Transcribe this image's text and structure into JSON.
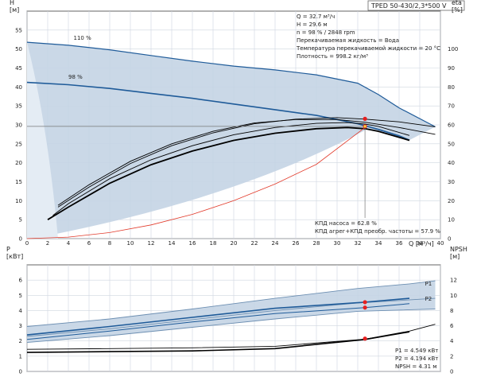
{
  "title": "TPED 50-430/2,3*500 V",
  "colors": {
    "range_fill": "#c4d4e4",
    "range_edge": "#6d8fb2",
    "grid": "#cfd6df",
    "head_blue": "#1f5b99",
    "eff_black": "#000000",
    "system_red": "#e23a2a",
    "marker_red": "#e62020",
    "marker_yellow": "#f2e13a"
  },
  "info_top": [
    "Q = 32.7 м³/ч",
    "H = 29.6 м",
    "n = 98 % / 2848 rpm",
    "Перекачиваемая жидкость = Вода",
    "Температура перекачиваемой жидкости = 20 °C",
    "Плотность = 998.2 кг/м³"
  ],
  "info_eff": [
    "КПД насоса = 62.8 %",
    "КПД агрег+КПД преобр. частоты = 57.9 %"
  ],
  "info_bottom": [
    "P1 = 4.549 кВт",
    "P2 = 4.194 кВт",
    "NPSH = 4.31 м"
  ],
  "chart_data": [
    {
      "type": "line",
      "panel": "head-efficiency",
      "xlabel": "Q [м³/ч]",
      "ylabel": "H [м]",
      "y2label": "eta [%]",
      "xlim": [
        0,
        40
      ],
      "ylim": [
        0,
        60
      ],
      "y2lim": [
        0,
        120
      ],
      "x_ticks": [
        0,
        2,
        4,
        6,
        8,
        10,
        12,
        14,
        16,
        18,
        20,
        22,
        24,
        26,
        28,
        30,
        32,
        34,
        36,
        38,
        40
      ],
      "y_ticks": [
        0,
        5,
        10,
        15,
        20,
        25,
        30,
        35,
        40,
        45,
        50,
        55
      ],
      "y2_ticks": [
        0,
        10,
        20,
        30,
        40,
        50,
        60,
        70,
        80,
        90,
        100
      ],
      "grid": true,
      "curve_labels": [
        "110 %",
        "98 %"
      ],
      "series": [
        {
          "name": "110 %",
          "x": [
            0,
            4,
            8,
            12,
            16,
            20,
            24,
            28,
            32,
            34,
            36,
            39.5
          ],
          "y": [
            51.8,
            51.0,
            49.8,
            48.3,
            46.8,
            45.5,
            44.5,
            43.2,
            41.0,
            38.0,
            34.5,
            29.5
          ]
        },
        {
          "name": "98 %",
          "x": [
            0,
            4,
            8,
            12,
            16,
            20,
            24,
            28,
            32,
            34,
            36,
            37
          ],
          "y": [
            41.2,
            40.6,
            39.6,
            38.3,
            37.0,
            35.5,
            34.0,
            32.5,
            30.3,
            28.8,
            27.1,
            26.0
          ]
        },
        {
          "x": [
            3,
            6,
            10,
            14,
            18,
            22,
            26,
            30,
            32.7,
            36,
            39.5
          ],
          "y": [
            8.3,
            13.6,
            19.8,
            24.5,
            27.9,
            30.3,
            31.5,
            31.9,
            31.5,
            30.8,
            29.5
          ]
        },
        {
          "x": [
            2,
            4,
            8,
            12,
            16,
            20,
            24,
            28,
            31,
            32.7,
            34,
            37
          ],
          "y": [
            5.0,
            8.3,
            14.6,
            19.5,
            23.1,
            25.9,
            27.8,
            29.0,
            29.3,
            29.0,
            28.3,
            25.9
          ]
        },
        {
          "x": [
            2.5,
            4,
            8,
            12,
            16,
            20,
            24,
            28,
            31,
            32.7,
            34,
            37
          ],
          "y": [
            6.1,
            9.2,
            15.8,
            20.8,
            24.5,
            27.4,
            29.3,
            30.4,
            30.6,
            30.2,
            29.6,
            27.2
          ]
        },
        {
          "x": [
            3,
            6,
            10,
            14,
            18,
            22,
            26,
            30,
            32.7,
            36,
            39.5
          ],
          "y": [
            8.8,
            14.2,
            20.4,
            25.0,
            28.3,
            30.5,
            31.4,
            31.4,
            30.7,
            29.3,
            27.5
          ]
        },
        {
          "name": "system",
          "x": [
            0,
            4,
            8,
            12,
            16,
            20,
            24,
            28,
            32.7
          ],
          "y": [
            0,
            0.4,
            1.6,
            3.6,
            6.4,
            10.0,
            14.4,
            19.6,
            29.3
          ]
        }
      ],
      "operating_point": {
        "q": 32.7,
        "h": 29.6,
        "eta": 62.8
      }
    },
    {
      "type": "line",
      "panel": "power-npsh",
      "ylabel": "P [кВт]",
      "y2label": "NPSH [м]",
      "xlim": [
        0,
        40
      ],
      "ylim": [
        0,
        7
      ],
      "y2lim": [
        0,
        14
      ],
      "y_ticks": [
        0,
        1,
        2,
        3,
        4,
        5,
        6
      ],
      "y2_ticks": [
        0,
        2,
        4,
        6,
        8,
        10,
        12
      ],
      "grid": true,
      "curve_labels": [
        "P1",
        "P2"
      ],
      "series": [
        {
          "x": [
            0,
            8,
            16,
            24,
            32,
            37
          ],
          "y": [
            2.95,
            3.45,
            4.1,
            4.8,
            5.45,
            5.75
          ]
        },
        {
          "x": [
            0,
            8,
            16,
            24,
            32,
            39.5
          ],
          "y": [
            2.3,
            2.8,
            3.4,
            4.0,
            4.5,
            4.8
          ]
        },
        {
          "x": [
            0,
            8,
            16,
            24,
            32,
            39.5
          ],
          "y": [
            1.9,
            2.35,
            2.9,
            3.45,
            3.95,
            4.1
          ]
        },
        {
          "name": "P1",
          "x": [
            0,
            8,
            16,
            24,
            32.7,
            37
          ],
          "y": [
            2.4,
            2.95,
            3.55,
            4.15,
            4.55,
            4.8
          ]
        },
        {
          "name": "P2",
          "x": [
            0,
            8,
            16,
            24,
            32.7,
            37
          ],
          "y": [
            2.1,
            2.65,
            3.25,
            3.8,
            4.19,
            4.45
          ]
        },
        {
          "x": [
            0,
            8,
            16,
            24,
            32.7,
            37,
            39.5
          ],
          "y": [
            1.45,
            1.5,
            1.55,
            1.65,
            2.12,
            2.65,
            3.1
          ]
        },
        {
          "x": [
            0,
            8,
            16,
            24,
            32.7,
            37
          ],
          "y": [
            1.25,
            1.3,
            1.35,
            1.5,
            2.1,
            2.6
          ]
        }
      ],
      "operating_point": {
        "q": 32.7,
        "p1": 4.549,
        "p2": 4.194,
        "npsh": 4.31
      }
    }
  ]
}
